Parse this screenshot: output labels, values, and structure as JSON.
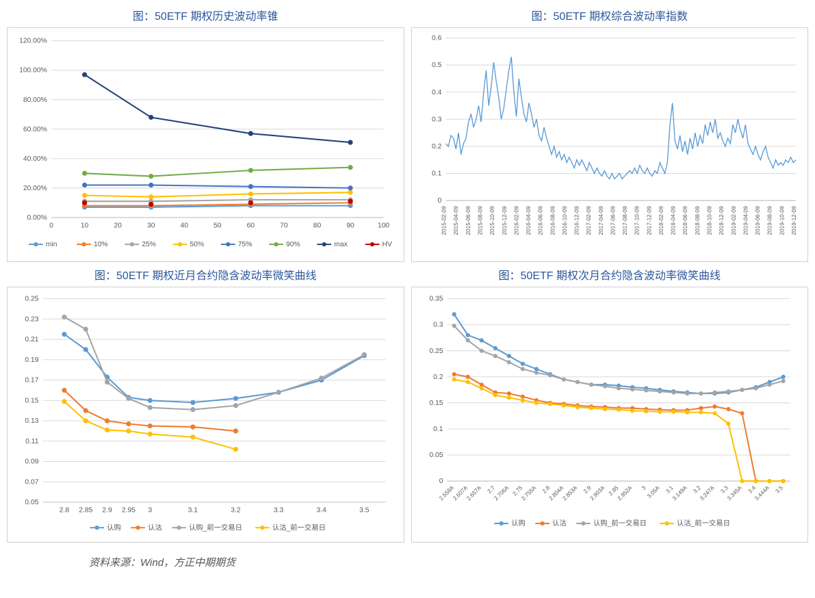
{
  "source": "资料来源：Wind，方正中期期货",
  "colors": {
    "blue": "#5b9bd5",
    "orange": "#ed7d31",
    "gray": "#a5a5a5",
    "yellow": "#ffc000",
    "darkblue": "#4472c4",
    "green": "#70ad47",
    "navy": "#264478",
    "red": "#c00000",
    "grid": "#d9d9d9",
    "axis": "#bfbfbf",
    "text": "#595959"
  },
  "chart1": {
    "title": "图：50ETF 期权历史波动率锥",
    "type": "line",
    "x": [
      10,
      30,
      60,
      90
    ],
    "x_ticks": [
      0,
      10,
      20,
      30,
      40,
      50,
      60,
      70,
      80,
      90,
      100
    ],
    "xlim": [
      0,
      100
    ],
    "y_ticks": [
      0,
      20,
      40,
      60,
      80,
      100,
      120
    ],
    "y_format": "percent",
    "ylim": [
      0,
      120
    ],
    "grid": true,
    "series": [
      {
        "name": "min",
        "color": "#5b9bd5",
        "marker": "circle",
        "values": [
          7,
          7,
          8,
          8
        ]
      },
      {
        "name": "10%",
        "color": "#ed7d31",
        "marker": "circle",
        "values": [
          8,
          8,
          9,
          10
        ]
      },
      {
        "name": "25%",
        "color": "#a5a5a5",
        "marker": "circle",
        "values": [
          11,
          11,
          12,
          12
        ]
      },
      {
        "name": "50%",
        "color": "#ffc000",
        "marker": "circle",
        "values": [
          15,
          14,
          16,
          17
        ]
      },
      {
        "name": "75%",
        "color": "#4472c4",
        "marker": "circle",
        "values": [
          22,
          22,
          21,
          20
        ]
      },
      {
        "name": "90%",
        "color": "#70ad47",
        "marker": "circle",
        "values": [
          30,
          28,
          32,
          34
        ]
      },
      {
        "name": "max",
        "color": "#264478",
        "marker": "circle",
        "values": [
          97,
          68,
          57,
          51
        ]
      },
      {
        "name": "HV",
        "color": "#c00000",
        "marker": "dot-only",
        "values": [
          10,
          9,
          10,
          11
        ]
      }
    ],
    "legend_pos": "bottom"
  },
  "chart2": {
    "title": "图：50ETF 期权综合波动率指数",
    "type": "line",
    "color": "#5b9bd5",
    "ylim": [
      0,
      0.6
    ],
    "y_ticks": [
      0,
      0.1,
      0.2,
      0.3,
      0.4,
      0.5,
      0.6
    ],
    "grid": true,
    "x_labels": [
      "2015-02-09",
      "2015-04-09",
      "2015-06-09",
      "2015-08-09",
      "2015-10-09",
      "2015-12-09",
      "2016-02-09",
      "2016-04-09",
      "2016-06-09",
      "2016-08-09",
      "2016-10-09",
      "2016-12-09",
      "2017-02-09",
      "2017-04-09",
      "2017-06-09",
      "2017-08-09",
      "2017-10-09",
      "2017-12-09",
      "2018-02-09",
      "2018-04-09",
      "2018-06-09",
      "2018-08-09",
      "2018-10-09",
      "2018-12-09",
      "2019-02-09",
      "2019-04-09",
      "2019-06-09",
      "2019-08-09",
      "2019-10-09",
      "2019-12-09"
    ],
    "values": [
      0.21,
      0.2,
      0.24,
      0.23,
      0.19,
      0.25,
      0.17,
      0.21,
      0.23,
      0.29,
      0.32,
      0.27,
      0.3,
      0.35,
      0.29,
      0.4,
      0.48,
      0.35,
      0.42,
      0.51,
      0.44,
      0.38,
      0.3,
      0.34,
      0.41,
      0.48,
      0.53,
      0.4,
      0.31,
      0.45,
      0.38,
      0.32,
      0.29,
      0.36,
      0.32,
      0.27,
      0.3,
      0.24,
      0.22,
      0.27,
      0.23,
      0.2,
      0.17,
      0.2,
      0.16,
      0.18,
      0.15,
      0.17,
      0.14,
      0.16,
      0.14,
      0.12,
      0.15,
      0.13,
      0.15,
      0.13,
      0.11,
      0.14,
      0.12,
      0.1,
      0.12,
      0.1,
      0.09,
      0.11,
      0.09,
      0.08,
      0.1,
      0.08,
      0.09,
      0.1,
      0.08,
      0.09,
      0.1,
      0.11,
      0.1,
      0.12,
      0.1,
      0.13,
      0.11,
      0.1,
      0.12,
      0.1,
      0.09,
      0.11,
      0.1,
      0.14,
      0.12,
      0.1,
      0.14,
      0.28,
      0.36,
      0.22,
      0.19,
      0.24,
      0.18,
      0.22,
      0.17,
      0.23,
      0.19,
      0.25,
      0.2,
      0.24,
      0.21,
      0.28,
      0.24,
      0.29,
      0.25,
      0.3,
      0.23,
      0.25,
      0.22,
      0.2,
      0.23,
      0.21,
      0.28,
      0.25,
      0.3,
      0.26,
      0.23,
      0.28,
      0.21,
      0.19,
      0.17,
      0.2,
      0.17,
      0.15,
      0.18,
      0.2,
      0.16,
      0.14,
      0.12,
      0.15,
      0.13,
      0.14,
      0.13,
      0.15,
      0.14,
      0.16,
      0.14,
      0.15
    ]
  },
  "chart3": {
    "title": "图：50ETF 期权近月合约隐含波动率微笑曲线",
    "type": "line",
    "xlim": [
      2.75,
      3.55
    ],
    "x_ticks": [
      2.8,
      2.85,
      2.9,
      2.95,
      3,
      3.1,
      3.2,
      3.3,
      3.4,
      3.5
    ],
    "ylim": [
      0.05,
      0.25
    ],
    "y_ticks": [
      0.05,
      0.07,
      0.09,
      0.11,
      0.13,
      0.15,
      0.17,
      0.19,
      0.21,
      0.23,
      0.25
    ],
    "grid": true,
    "series": [
      {
        "name": "认购",
        "color": "#5b9bd5",
        "marker": "circle",
        "x": [
          2.8,
          2.85,
          2.9,
          2.95,
          3.0,
          3.1,
          3.2,
          3.3,
          3.4,
          3.5
        ],
        "y": [
          0.215,
          0.2,
          0.173,
          0.153,
          0.15,
          0.148,
          0.152,
          0.158,
          0.17,
          0.194
        ]
      },
      {
        "name": "认沽",
        "color": "#ed7d31",
        "marker": "circle",
        "x": [
          2.8,
          2.85,
          2.9,
          2.95,
          3.0,
          3.1,
          3.2
        ],
        "y": [
          0.16,
          0.14,
          0.13,
          0.127,
          0.125,
          0.124,
          0.12
        ]
      },
      {
        "name": "认购_前一交易日",
        "color": "#a5a5a5",
        "marker": "circle",
        "x": [
          2.8,
          2.85,
          2.9,
          2.95,
          3.0,
          3.1,
          3.2,
          3.3,
          3.4,
          3.5
        ],
        "y": [
          0.232,
          0.22,
          0.168,
          0.152,
          0.143,
          0.141,
          0.145,
          0.158,
          0.172,
          0.195
        ]
      },
      {
        "name": "认沽_前一交易日",
        "color": "#ffc000",
        "marker": "circle",
        "x": [
          2.8,
          2.85,
          2.9,
          2.95,
          3.0,
          3.1,
          3.2
        ],
        "y": [
          0.149,
          0.13,
          0.121,
          0.12,
          0.117,
          0.114,
          0.102
        ]
      }
    ],
    "legend_pos": "bottom"
  },
  "chart4": {
    "title": "图：50ETF 期权次月合约隐含波动率微笑曲线",
    "type": "line",
    "xlim": [
      0,
      21
    ],
    "x_categories": [
      "2.558A",
      "2.607A",
      "2.657A",
      "2.7",
      "2.706A",
      "2.75",
      "2.755A",
      "2.8",
      "2.804A",
      "2.853A",
      "2.9",
      "2.903A",
      "2.95",
      "2.952A",
      "3",
      "3.05A",
      "3.1",
      "3.149A",
      "3.2",
      "3.247A",
      "3.3",
      "3.345A",
      "3.4",
      "3.444A",
      "3.5"
    ],
    "x_tick_rotate": -45,
    "ylim": [
      0,
      0.35
    ],
    "y_ticks": [
      0,
      0.05,
      0.1,
      0.15,
      0.2,
      0.25,
      0.3,
      0.35
    ],
    "grid": true,
    "series": [
      {
        "name": "认购",
        "color": "#5b9bd5",
        "marker": "circle",
        "y": [
          0.32,
          0.28,
          0.27,
          0.255,
          0.24,
          0.225,
          0.215,
          0.205,
          0.195,
          0.19,
          0.185,
          0.185,
          0.183,
          0.18,
          0.178,
          0.175,
          0.172,
          0.17,
          0.168,
          0.168,
          0.17,
          0.175,
          0.18,
          0.19,
          0.2
        ]
      },
      {
        "name": "认沽",
        "color": "#ed7d31",
        "marker": "circle",
        "y": [
          0.205,
          0.2,
          0.185,
          0.17,
          0.168,
          0.162,
          0.155,
          0.15,
          0.148,
          0.145,
          0.143,
          0.142,
          0.14,
          0.14,
          0.138,
          0.137,
          0.136,
          0.136,
          0.14,
          0.143,
          0.138,
          0.13,
          0.0,
          0.0,
          0.0
        ]
      },
      {
        "name": "认购_前一交易日",
        "color": "#a5a5a5",
        "marker": "circle",
        "y": [
          0.298,
          0.27,
          0.25,
          0.24,
          0.228,
          0.215,
          0.208,
          0.203,
          0.195,
          0.19,
          0.185,
          0.182,
          0.178,
          0.176,
          0.174,
          0.172,
          0.17,
          0.168,
          0.168,
          0.17,
          0.172,
          0.175,
          0.178,
          0.185,
          0.192
        ]
      },
      {
        "name": "认沽_前一交易日",
        "color": "#ffc000",
        "marker": "circle",
        "y": [
          0.195,
          0.19,
          0.178,
          0.165,
          0.16,
          0.155,
          0.15,
          0.148,
          0.145,
          0.142,
          0.14,
          0.138,
          0.137,
          0.135,
          0.134,
          0.133,
          0.133,
          0.132,
          0.132,
          0.13,
          0.11,
          0.0,
          0.0,
          0.0,
          0.0
        ]
      }
    ],
    "legend_pos": "bottom"
  }
}
